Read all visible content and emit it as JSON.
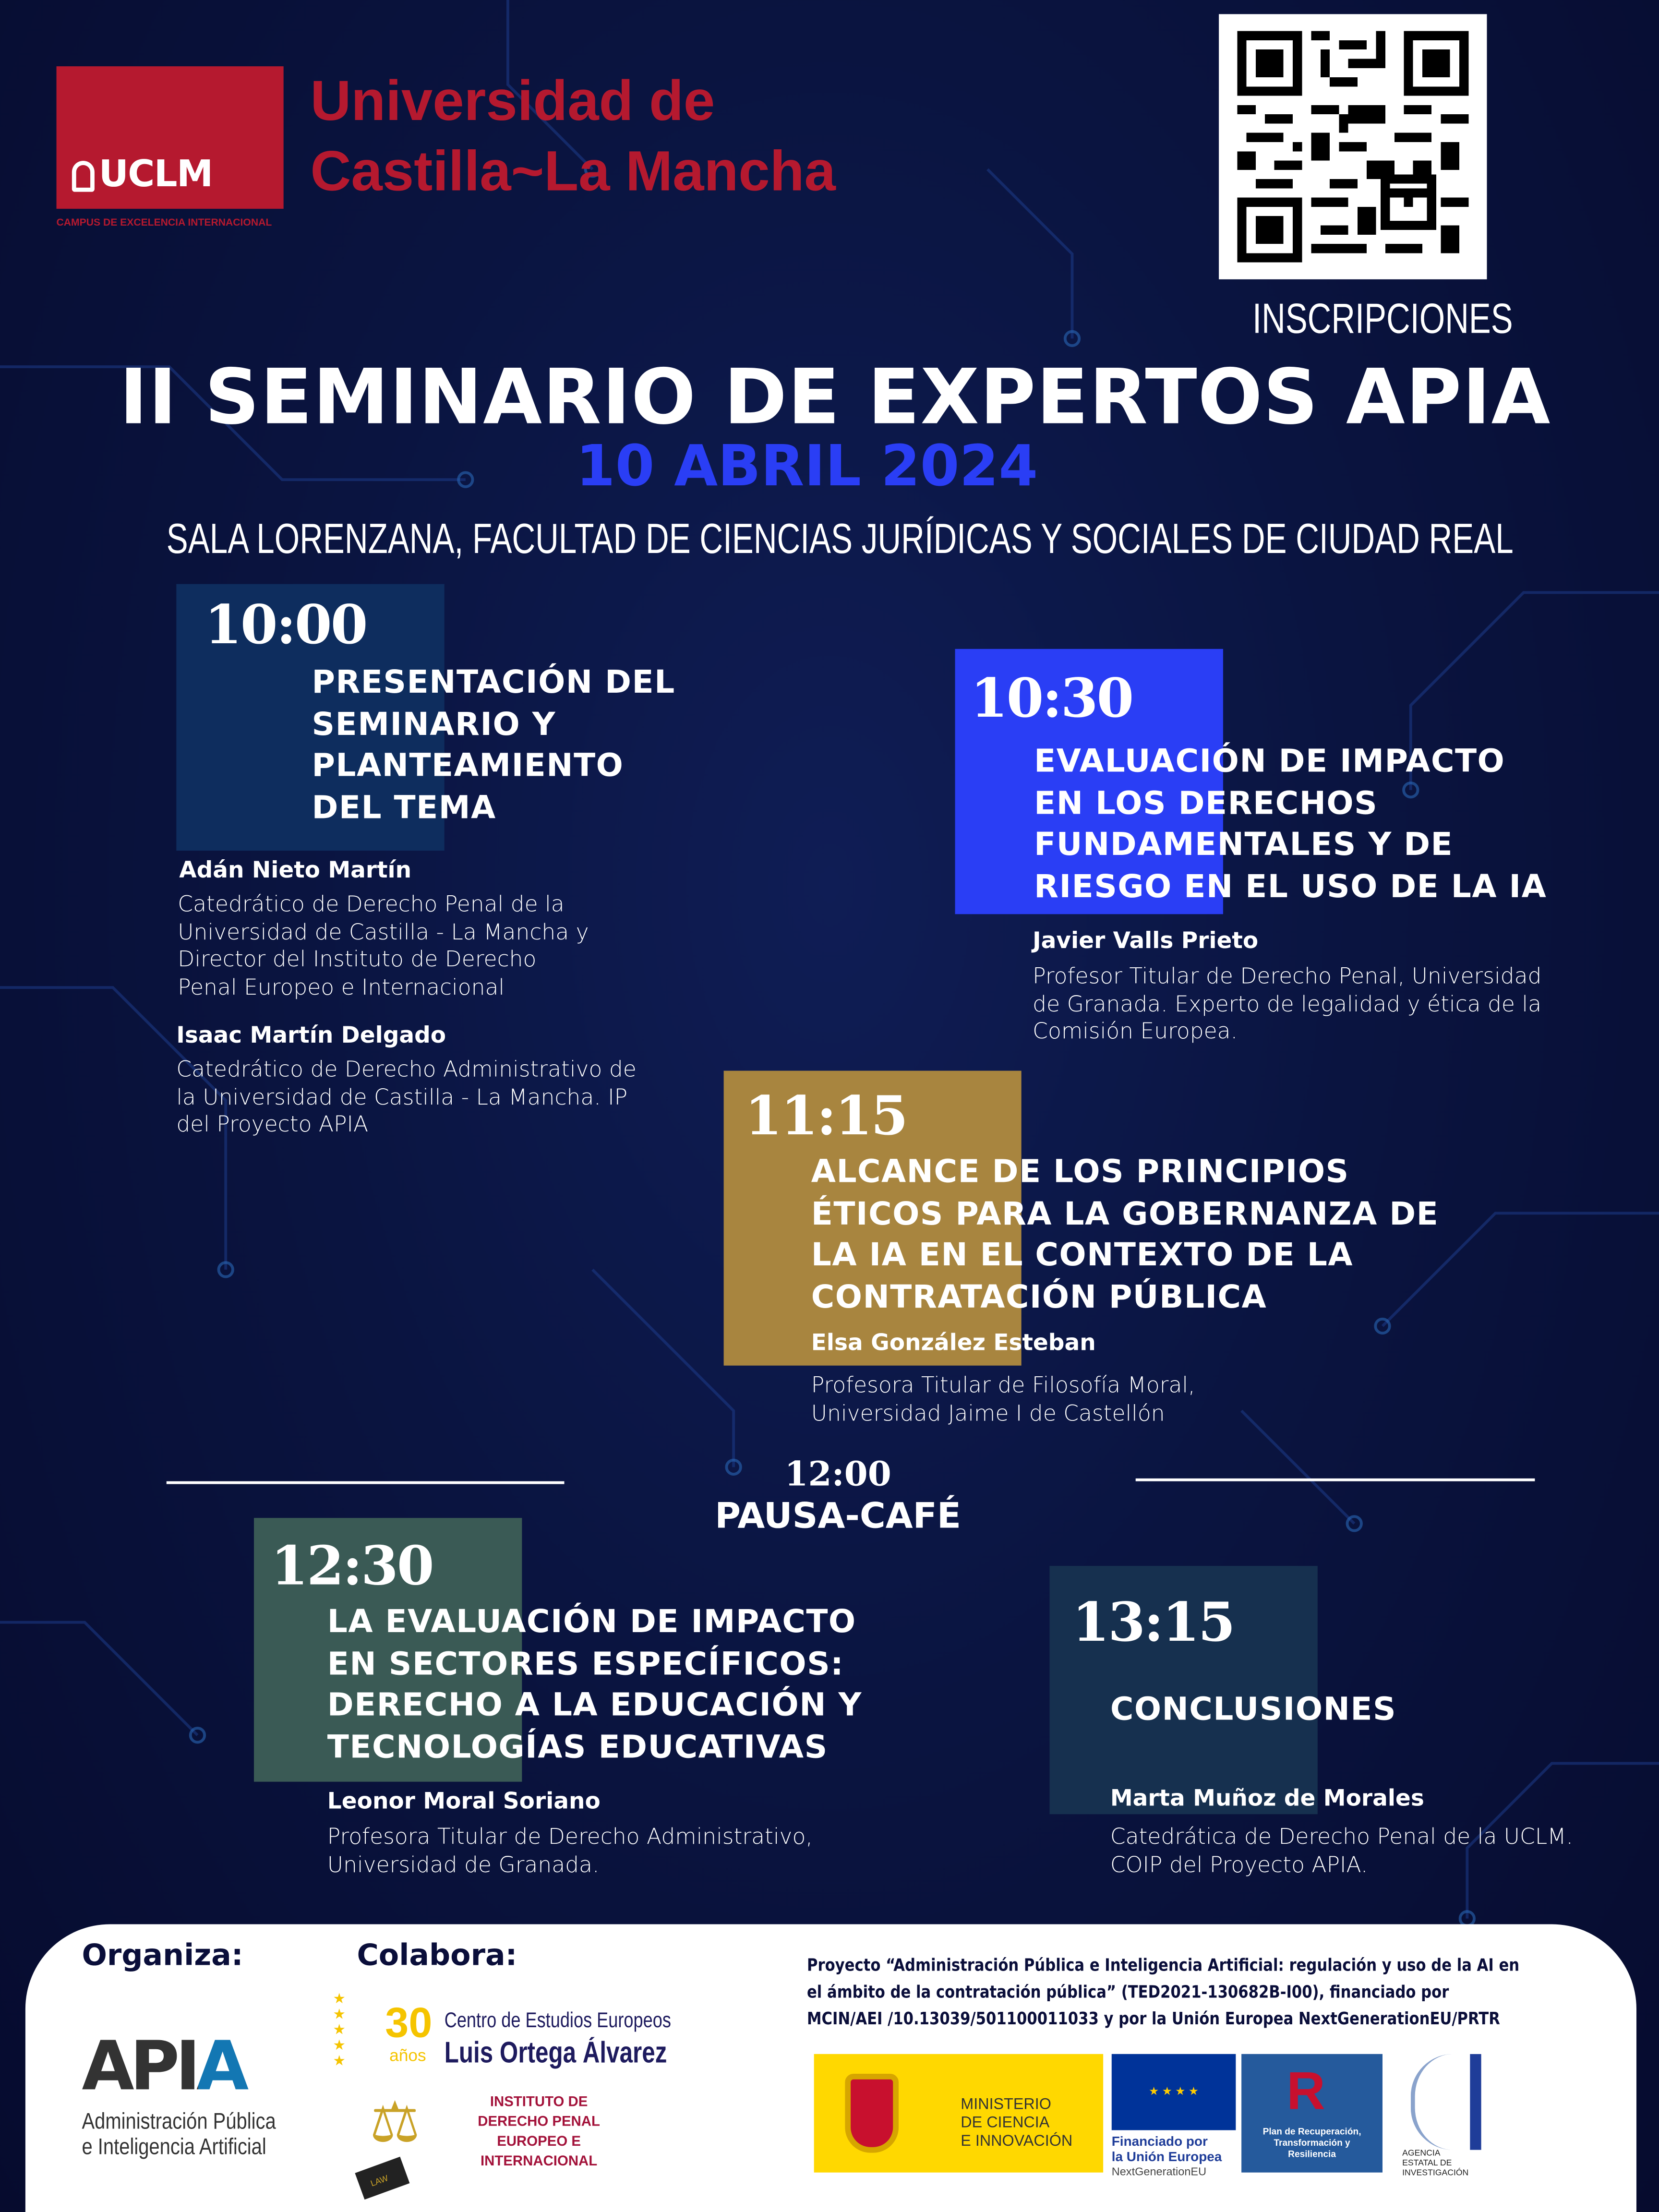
{
  "header": {
    "uclm_logo_text": "UCLM",
    "uclm_campus": "CAMPUS DE EXCELENCIA INTERNACIONAL",
    "university_line1": "Universidad de",
    "university_line2": "Castilla~La Mancha",
    "qr_label": "INSCRIPCIONES"
  },
  "event": {
    "title": "II SEMINARIO DE EXPERTOS APIA",
    "date": "10 ABRIL 2024",
    "venue": "SALA LORENZANA, FACULTAD DE CIENCIAS JURÍDICAS Y SOCIALES DE CIUDAD REAL"
  },
  "sessions": [
    {
      "time": "10:00",
      "title": [
        "PRESENTACIÓN DEL",
        "SEMINARIO Y",
        "PLANTEAMIENTO",
        "DEL TEMA"
      ],
      "speakers": [
        {
          "name": "Adán Nieto Martín",
          "desc": [
            "Catedrático de Derecho Penal de la",
            "Universidad de Castilla - La Mancha y",
            "Director del Instituto de Derecho",
            "Penal Europeo e Internacional"
          ]
        },
        {
          "name": "Isaac Martín Delgado",
          "desc": [
            "Catedrático de Derecho Administrativo de",
            "la Universidad de Castilla - La Mancha. IP",
            "del Proyecto APIA"
          ]
        }
      ]
    },
    {
      "time": "10:30",
      "title": [
        "EVALUACIÓN DE IMPACTO",
        "EN LOS DERECHOS",
        "FUNDAMENTALES Y DE",
        "RIESGO EN EL USO DE LA IA"
      ],
      "speakers": [
        {
          "name": "Javier Valls Prieto",
          "desc": [
            "Profesor Titular de Derecho Penal, Universidad",
            "de Granada. Experto de legalidad y ética de la",
            "Comisión Europea."
          ]
        }
      ]
    },
    {
      "time": "11:15",
      "title": [
        "ALCANCE DE LOS PRINCIPIOS",
        "ÉTICOS PARA LA GOBERNANZA DE",
        "LA IA EN EL CONTEXTO DE LA",
        "CONTRATACIÓN PÚBLICA"
      ],
      "speakers": [
        {
          "name": "Elsa González Esteban",
          "desc": [
            "Profesora Titular de Filosofía  Moral,",
            "Universidad Jaime I de Castellón"
          ]
        }
      ]
    },
    {
      "time": "12:30",
      "title": [
        "LA EVALUACIÓN DE IMPACTO",
        "EN SECTORES ESPECÍFICOS:",
        "DERECHO A LA EDUCACIÓN Y",
        "TECNOLOGÍAS EDUCATIVAS"
      ],
      "speakers": [
        {
          "name": "Leonor Moral Soriano",
          "desc": [
            "Profesora Titular de Derecho Administrativo,",
            "Universidad de Granada."
          ]
        }
      ]
    },
    {
      "time": "13:15",
      "title": [
        "CONCLUSIONES"
      ],
      "speakers": [
        {
          "name": "Marta Muñoz de Morales",
          "desc": [
            "Catedrática de Derecho Penal de la UCLM.",
            "COIP  del Proyecto APIA."
          ]
        }
      ]
    }
  ],
  "break": {
    "time": "12:00",
    "label": "PAUSA-CAFÉ"
  },
  "colors": {
    "background": "#0a1440",
    "accent_blue": "#2a3ef5",
    "uclm_red": "#b5192f",
    "block_1000": "#0e2d5e",
    "block_1030": "#2a3ef5",
    "block_1115": "#a8853f",
    "block_1230": "#3a5a55",
    "block_1315": "#16304f"
  },
  "footer": {
    "organiza": "Organiza:",
    "colabora": "Colabora:",
    "apia_logo": {
      "mark": "APIA",
      "line1": "Administración Pública",
      "line2": "e Inteligencia Artificial"
    },
    "cee_logo": {
      "years": "30",
      "years_label": "años",
      "line1": "Centro de Estudios Europeos",
      "line2": "Luis Ortega Álvarez"
    },
    "idpei_logo": {
      "lines": [
        "INSTITUTO DE",
        "DERECHO PENAL",
        "EUROPEO E",
        "INTERNACIONAL"
      ],
      "book_label": "LAW"
    },
    "project_text": [
      "Proyecto “Administración Pública e Inteligencia Artificial: regulación y uso de la AI en",
      "el ámbito de la contratación pública” (TED2021-130682B-I00), financiado por",
      "MCIN/AEI /10.13039/501100011033 y por la Unión Europea NextGenerationEU/PRTR"
    ],
    "funders": {
      "ministerio": [
        "MINISTERIO",
        "DE CIENCIA",
        "E INNOVACIÓN"
      ],
      "eu": [
        "Financiado por",
        "la Unión Europea",
        "NextGenerationEU"
      ],
      "prtr": [
        "Plan de Recuperación,",
        "Transformación y",
        "Resiliencia"
      ],
      "aei": [
        "AGENCIA",
        "ESTATAL DE",
        "INVESTIGACIÓN"
      ]
    }
  }
}
